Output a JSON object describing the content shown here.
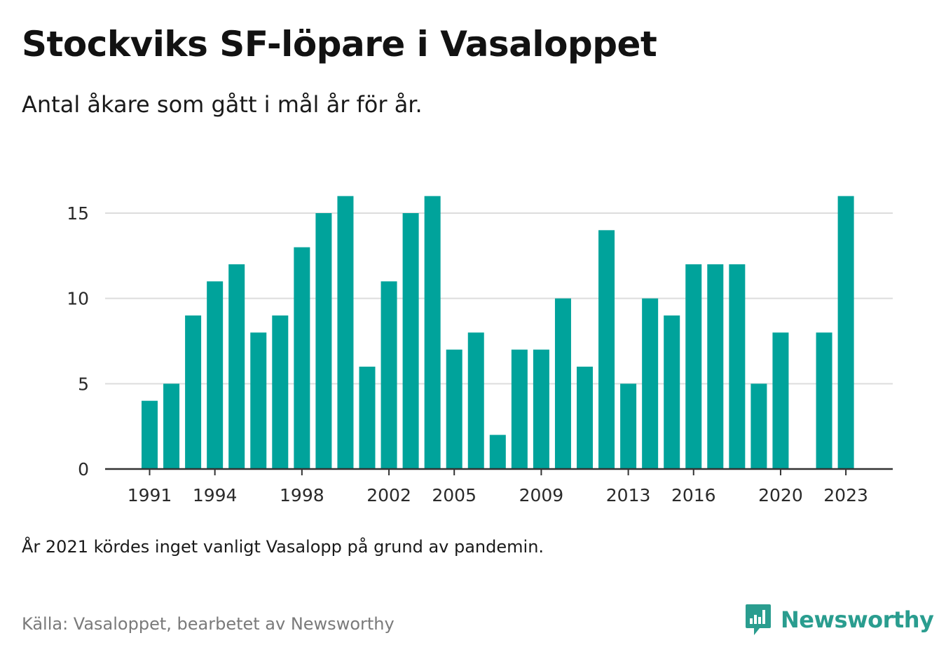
{
  "title": "Stockviks SF-löpare i Vasaloppet",
  "subtitle": "Antal åkare som gått i mål år för år.",
  "note": "År 2021 kördes inget vanligt Vasalopp på grund av pandemin.",
  "source": "Källa: Vasaloppet, bearbetet av Newsworthy",
  "brand": {
    "name": "Newsworthy",
    "icon": "newsworthy-logo-icon"
  },
  "colors": {
    "bar": "#00a39b",
    "grid": "#dddddd",
    "axis": "#333333",
    "brand": "#2a9d8f"
  },
  "chart_data": {
    "type": "bar",
    "x": [
      1991,
      1992,
      1993,
      1994,
      1995,
      1996,
      1997,
      1998,
      1999,
      2000,
      2001,
      2002,
      2003,
      2004,
      2005,
      2006,
      2007,
      2008,
      2009,
      2010,
      2011,
      2012,
      2013,
      2014,
      2015,
      2016,
      2017,
      2018,
      2019,
      2020,
      2021,
      2022,
      2023
    ],
    "values": [
      4,
      5,
      9,
      11,
      12,
      8,
      9,
      13,
      15,
      16,
      6,
      11,
      15,
      16,
      7,
      8,
      2,
      7,
      7,
      10,
      6,
      14,
      5,
      10,
      9,
      12,
      12,
      12,
      5,
      8,
      null,
      8,
      16
    ],
    "xticks": [
      1991,
      1994,
      1998,
      2002,
      2005,
      2009,
      2013,
      2016,
      2020,
      2023
    ],
    "yticks": [
      0,
      5,
      10,
      15
    ],
    "ylim": [
      0,
      16
    ],
    "xlabel": "",
    "ylabel": "",
    "grid": true,
    "legend": "none"
  }
}
